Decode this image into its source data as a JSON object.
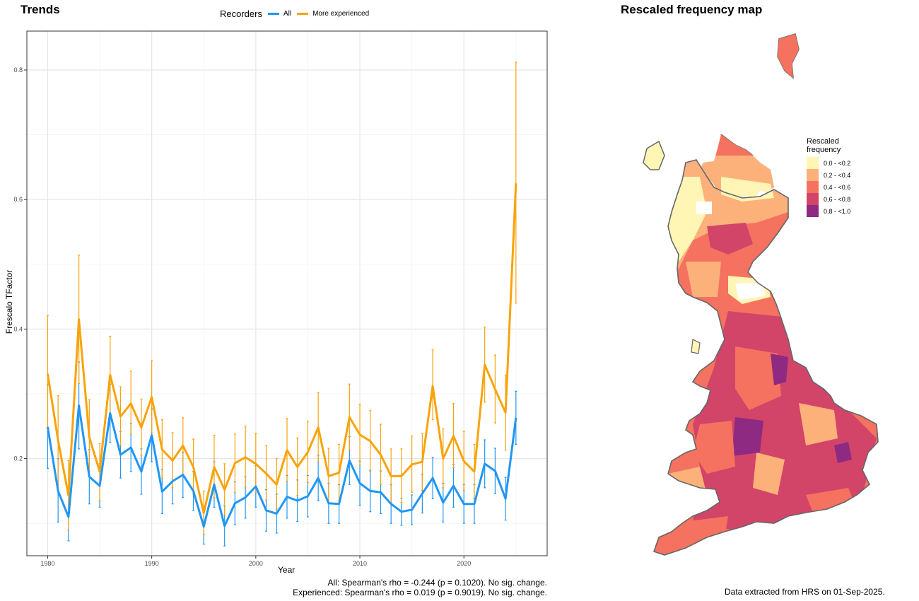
{
  "left_panel": {
    "title": "Trends",
    "legend": {
      "title": "Recorders",
      "items": [
        {
          "label": "All",
          "color": "#2196F3"
        },
        {
          "label": "More experienced",
          "color": "#F9A30B"
        }
      ]
    },
    "caption_lines": [
      "All: Spearman's rho = -0.244 (p = 0.1020). No sig. change.",
      "Experienced: Spearman's rho = 0.019 (p = 0.9019). No sig. change."
    ]
  },
  "right_panel": {
    "title": "Rescaled frequency map",
    "legend": {
      "title_lines": [
        "Rescaled",
        "frequency"
      ],
      "items": [
        {
          "label": "0.0 - <0.2",
          "color": "#FFF5B5"
        },
        {
          "label": "0.2 - <0.4",
          "color": "#FDB17A"
        },
        {
          "label": "0.4 - <0.6",
          "color": "#F4725F"
        },
        {
          "label": "0.6 - <0.8",
          "color": "#D24468"
        },
        {
          "label": "0.8 - <1.0",
          "color": "#8E2A82"
        }
      ]
    },
    "caption": "Data extracted from HRS on 01-Sep-2025."
  },
  "chart_data": {
    "type": "line",
    "xlabel": "Year",
    "ylabel": "Frescalo TFactor",
    "xlim": [
      1978,
      2028
    ],
    "ylim": [
      0.05,
      0.86
    ],
    "xticks": [
      1980,
      1990,
      2000,
      2010,
      2020
    ],
    "yticks": [
      0.2,
      0.4,
      0.6,
      0.8
    ],
    "grid": true,
    "legend_position": "top",
    "x": [
      1980,
      1981,
      1982,
      1983,
      1984,
      1985,
      1986,
      1987,
      1988,
      1989,
      1990,
      1991,
      1992,
      1993,
      1994,
      1995,
      1996,
      1997,
      1998,
      1999,
      2000,
      2001,
      2002,
      2003,
      2004,
      2005,
      2006,
      2007,
      2008,
      2009,
      2010,
      2011,
      2012,
      2013,
      2014,
      2015,
      2016,
      2017,
      2018,
      2019,
      2020,
      2021,
      2022,
      2023,
      2024,
      2025
    ],
    "series": [
      {
        "name": "All",
        "color": "#2196F3",
        "values": [
          0.249,
          0.15,
          0.11,
          0.282,
          0.172,
          0.158,
          0.27,
          0.206,
          0.217,
          0.18,
          0.236,
          0.149,
          0.165,
          0.175,
          0.15,
          0.095,
          0.16,
          0.096,
          0.131,
          0.14,
          0.157,
          0.12,
          0.115,
          0.141,
          0.135,
          0.142,
          0.17,
          0.131,
          0.13,
          0.197,
          0.162,
          0.15,
          0.148,
          0.13,
          0.118,
          0.121,
          0.146,
          0.17,
          0.132,
          0.158,
          0.13,
          0.13,
          0.192,
          0.181,
          0.138,
          0.263
        ],
        "lower": [
          0.185,
          0.102,
          0.073,
          0.215,
          0.13,
          0.125,
          0.225,
          0.17,
          0.18,
          0.145,
          0.195,
          0.115,
          0.13,
          0.14,
          0.12,
          0.068,
          0.125,
          0.065,
          0.098,
          0.108,
          0.125,
          0.088,
          0.085,
          0.108,
          0.103,
          0.11,
          0.135,
          0.1,
          0.1,
          0.16,
          0.128,
          0.118,
          0.115,
          0.1,
          0.097,
          0.098,
          0.116,
          0.138,
          0.102,
          0.125,
          0.1,
          0.1,
          0.155,
          0.146,
          0.105,
          0.222
        ],
        "upper": [
          0.314,
          0.2,
          0.148,
          0.349,
          0.214,
          0.192,
          0.315,
          0.242,
          0.254,
          0.215,
          0.277,
          0.183,
          0.2,
          0.21,
          0.18,
          0.122,
          0.195,
          0.127,
          0.164,
          0.172,
          0.189,
          0.152,
          0.145,
          0.174,
          0.167,
          0.174,
          0.205,
          0.162,
          0.16,
          0.234,
          0.196,
          0.182,
          0.181,
          0.16,
          0.139,
          0.144,
          0.176,
          0.202,
          0.162,
          0.191,
          0.16,
          0.16,
          0.229,
          0.216,
          0.171,
          0.304
        ]
      },
      {
        "name": "More experienced",
        "color": "#F9A30B",
        "values": [
          0.331,
          0.228,
          0.143,
          0.415,
          0.233,
          0.18,
          0.329,
          0.265,
          0.285,
          0.248,
          0.295,
          0.214,
          0.197,
          0.22,
          0.187,
          0.116,
          0.187,
          0.152,
          0.193,
          0.202,
          0.192,
          0.177,
          0.16,
          0.213,
          0.187,
          0.21,
          0.248,
          0.173,
          0.178,
          0.264,
          0.237,
          0.227,
          0.206,
          0.173,
          0.173,
          0.191,
          0.195,
          0.312,
          0.2,
          0.235,
          0.196,
          0.18,
          0.345,
          0.307,
          0.271,
          0.625
        ],
        "lower": [
          0.241,
          0.16,
          0.09,
          0.316,
          0.175,
          0.135,
          0.27,
          0.22,
          0.238,
          0.205,
          0.24,
          0.17,
          0.155,
          0.175,
          0.145,
          0.083,
          0.14,
          0.112,
          0.148,
          0.156,
          0.148,
          0.136,
          0.122,
          0.165,
          0.143,
          0.163,
          0.195,
          0.132,
          0.136,
          0.213,
          0.19,
          0.18,
          0.16,
          0.132,
          0.132,
          0.148,
          0.151,
          0.26,
          0.155,
          0.186,
          0.151,
          0.138,
          0.287,
          0.255,
          0.213,
          0.44
        ],
        "upper": [
          0.421,
          0.297,
          0.197,
          0.514,
          0.291,
          0.223,
          0.389,
          0.311,
          0.335,
          0.292,
          0.351,
          0.26,
          0.24,
          0.263,
          0.23,
          0.15,
          0.236,
          0.192,
          0.238,
          0.25,
          0.239,
          0.22,
          0.2,
          0.262,
          0.232,
          0.258,
          0.302,
          0.216,
          0.222,
          0.315,
          0.284,
          0.274,
          0.253,
          0.215,
          0.215,
          0.235,
          0.239,
          0.368,
          0.246,
          0.285,
          0.242,
          0.222,
          0.403,
          0.36,
          0.329,
          0.812
        ]
      }
    ]
  }
}
